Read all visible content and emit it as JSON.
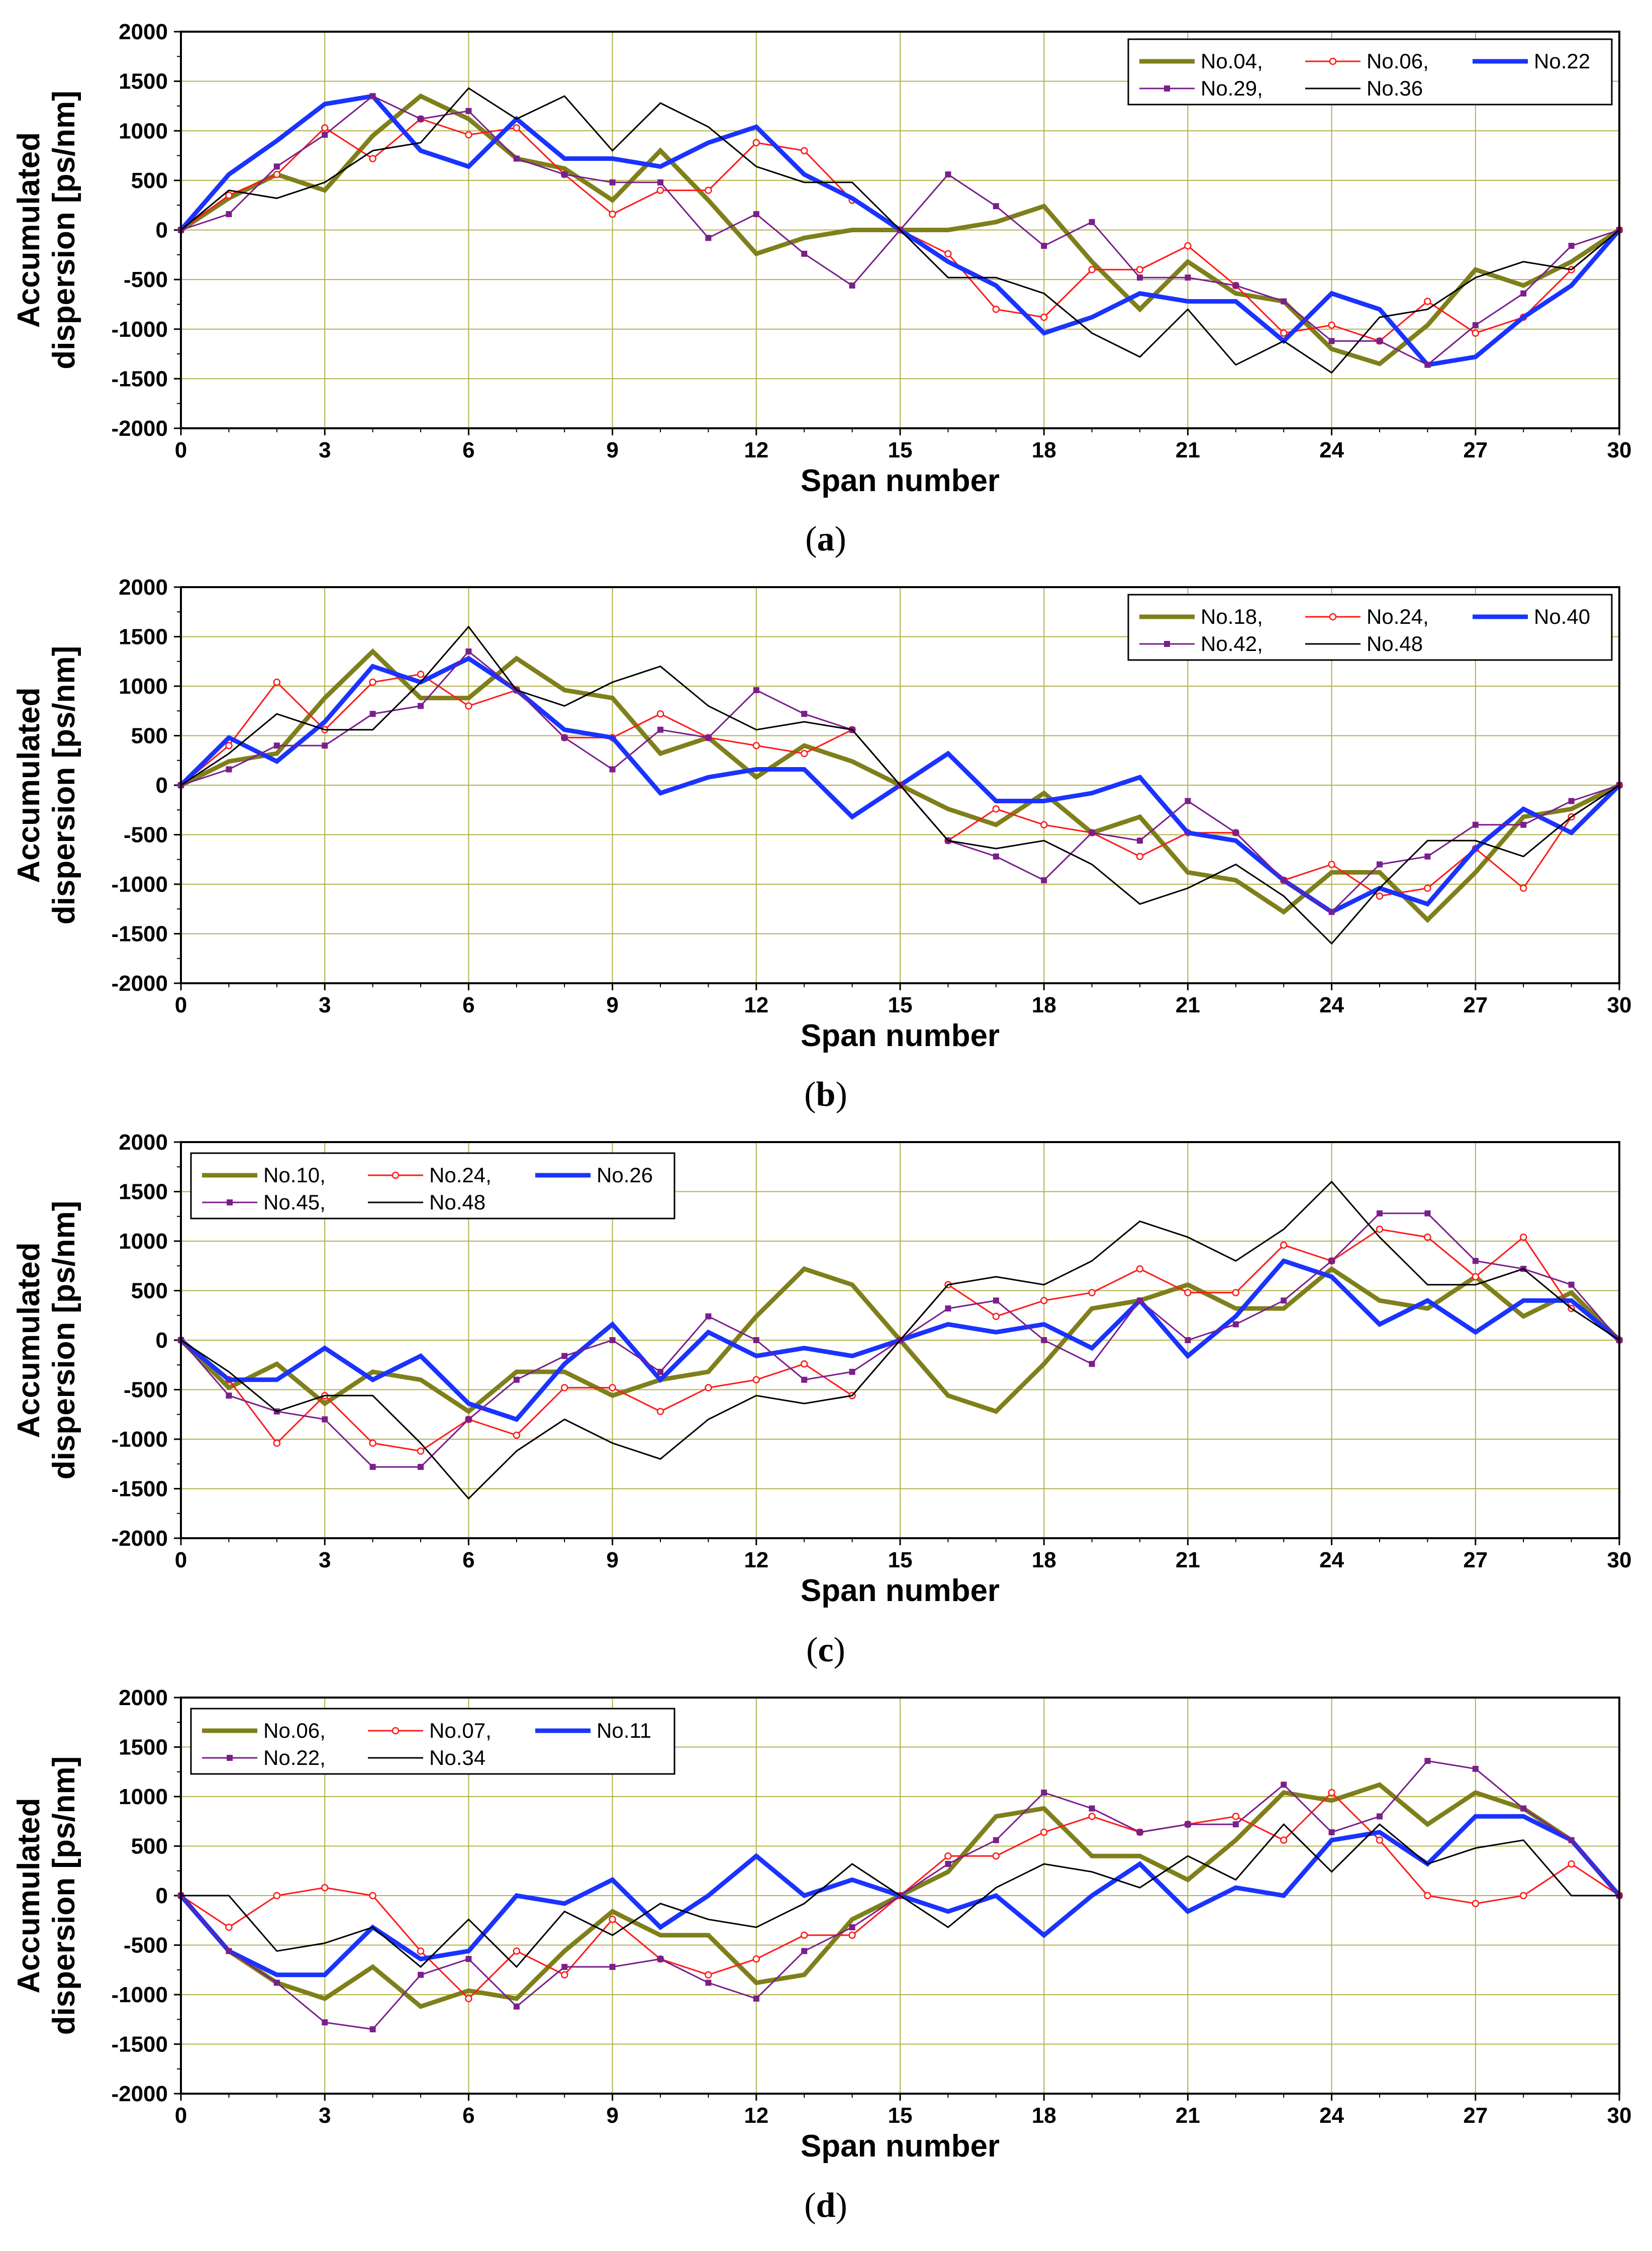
{
  "chart_data": [
    {
      "type": "line",
      "caption": "a",
      "xlabel": "Span number",
      "ylabel": [
        "Accumulated",
        "dispersion [ps/nm]"
      ],
      "xlim": [
        0,
        30
      ],
      "ylim": [
        -2000,
        2000
      ],
      "xticks": [
        0,
        3,
        6,
        9,
        12,
        15,
        18,
        21,
        24,
        27,
        30
      ],
      "yticks": [
        -2000,
        -1500,
        -1000,
        -500,
        0,
        500,
        1000,
        1500,
        2000
      ],
      "grid": true,
      "legend_position": "top-right",
      "x": [
        0,
        1,
        2,
        3,
        4,
        5,
        6,
        7,
        8,
        9,
        10,
        11,
        12,
        13,
        14,
        15,
        16,
        17,
        18,
        19,
        20,
        21,
        22,
        23,
        24,
        25,
        26,
        27,
        28,
        29,
        30
      ],
      "series": [
        {
          "name": "No.04,",
          "color": "#7f7f1b",
          "style": "thick",
          "values": [
            0,
            320,
            560,
            400,
            950,
            1350,
            1120,
            720,
            620,
            300,
            800,
            300,
            -240,
            -80,
            0,
            0,
            0,
            80,
            240,
            -320,
            -800,
            -320,
            -640,
            -720,
            -1200,
            -1350,
            -960,
            -400,
            -560,
            -320,
            0
          ]
        },
        {
          "name": "No.06,",
          "color": "#ff1a1a",
          "style": "circle",
          "values": [
            0,
            350,
            560,
            1030,
            720,
            1120,
            960,
            1030,
            560,
            160,
            400,
            400,
            880,
            800,
            300,
            0,
            -240,
            -800,
            -880,
            -400,
            -400,
            -160,
            -560,
            -1040,
            -960,
            -1120,
            -720,
            -1040,
            -880,
            -400,
            0
          ]
        },
        {
          "name": "No.22",
          "color": "#1a33ff",
          "style": "thick",
          "values": [
            0,
            560,
            900,
            1270,
            1350,
            800,
            640,
            1120,
            720,
            720,
            640,
            880,
            1040,
            560,
            320,
            0,
            -320,
            -560,
            -1040,
            -880,
            -640,
            -720,
            -720,
            -1120,
            -640,
            -800,
            -1360,
            -1280,
            -880,
            -560,
            0
          ]
        },
        {
          "name": "No.29,",
          "color": "#7a1f8c",
          "style": "square",
          "values": [
            0,
            160,
            640,
            960,
            1350,
            1120,
            1200,
            720,
            560,
            480,
            480,
            -80,
            160,
            -240,
            -560,
            0,
            560,
            240,
            -160,
            80,
            -480,
            -480,
            -560,
            -720,
            -1120,
            -1120,
            -1360,
            -960,
            -640,
            -160,
            0
          ]
        },
        {
          "name": "No.36",
          "color": "#000000",
          "style": "thin",
          "values": [
            0,
            400,
            320,
            480,
            800,
            880,
            1430,
            1120,
            1350,
            800,
            1280,
            1040,
            640,
            480,
            480,
            0,
            -480,
            -480,
            -640,
            -1040,
            -1280,
            -800,
            -1360,
            -1120,
            -1440,
            -880,
            -800,
            -480,
            -320,
            -400,
            0
          ]
        }
      ]
    },
    {
      "type": "line",
      "caption": "b",
      "xlabel": "Span number",
      "ylabel": [
        "Accumulated",
        "dispersion [ps/nm]"
      ],
      "xlim": [
        0,
        30
      ],
      "ylim": [
        -2000,
        2000
      ],
      "xticks": [
        0,
        3,
        6,
        9,
        12,
        15,
        18,
        21,
        24,
        27,
        30
      ],
      "yticks": [
        -2000,
        -1500,
        -1000,
        -500,
        0,
        500,
        1000,
        1500,
        2000
      ],
      "grid": true,
      "legend_position": "top-right",
      "x": [
        0,
        1,
        2,
        3,
        4,
        5,
        6,
        7,
        8,
        9,
        10,
        11,
        12,
        13,
        14,
        15,
        16,
        17,
        18,
        19,
        20,
        21,
        22,
        23,
        24,
        25,
        26,
        27,
        28,
        29,
        30
      ],
      "series": [
        {
          "name": "No.18,",
          "color": "#7f7f1b",
          "style": "thick",
          "values": [
            0,
            240,
            320,
            880,
            1350,
            880,
            880,
            1280,
            960,
            880,
            320,
            480,
            80,
            400,
            240,
            0,
            -240,
            -400,
            -80,
            -480,
            -320,
            -880,
            -960,
            -1280,
            -880,
            -880,
            -1360,
            -880,
            -320,
            -240,
            0
          ]
        },
        {
          "name": "No.24,",
          "color": "#ff1a1a",
          "style": "circle",
          "values": [
            0,
            400,
            1040,
            560,
            1040,
            1120,
            800,
            960,
            480,
            480,
            720,
            480,
            400,
            320,
            560,
            0,
            -560,
            -240,
            -400,
            -480,
            -720,
            -480,
            -480,
            -960,
            -800,
            -1120,
            -1040,
            -640,
            -1040,
            -320,
            0
          ]
        },
        {
          "name": "No.40",
          "color": "#1a33ff",
          "style": "thick",
          "values": [
            0,
            480,
            240,
            640,
            1200,
            1040,
            1280,
            960,
            560,
            480,
            -80,
            80,
            160,
            160,
            -320,
            0,
            320,
            -160,
            -160,
            -80,
            80,
            -480,
            -560,
            -960,
            -1280,
            -1040,
            -1200,
            -640,
            -240,
            -480,
            0
          ]
        },
        {
          "name": "No.42,",
          "color": "#7a1f8c",
          "style": "square",
          "values": [
            0,
            160,
            400,
            400,
            720,
            800,
            1350,
            960,
            480,
            160,
            560,
            480,
            960,
            720,
            560,
            0,
            -560,
            -720,
            -960,
            -480,
            -560,
            -160,
            -480,
            -960,
            -1280,
            -800,
            -720,
            -400,
            -400,
            -160,
            0
          ]
        },
        {
          "name": "No.48",
          "color": "#000000",
          "style": "thin",
          "values": [
            0,
            320,
            720,
            560,
            560,
            1040,
            1600,
            960,
            800,
            1040,
            1200,
            800,
            560,
            640,
            560,
            0,
            -560,
            -640,
            -560,
            -800,
            -1200,
            -1040,
            -800,
            -1120,
            -1600,
            -1040,
            -560,
            -560,
            -720,
            -320,
            0
          ]
        }
      ]
    },
    {
      "type": "line",
      "caption": "c",
      "xlabel": "Span number",
      "ylabel": [
        "Accumulated",
        "dispersion [ps/nm]"
      ],
      "xlim": [
        0,
        30
      ],
      "ylim": [
        -2000,
        2000
      ],
      "xticks": [
        0,
        3,
        6,
        9,
        12,
        15,
        18,
        21,
        24,
        27,
        30
      ],
      "yticks": [
        -2000,
        -1500,
        -1000,
        -500,
        0,
        500,
        1000,
        1500,
        2000
      ],
      "grid": true,
      "legend_position": "top-left",
      "x": [
        0,
        1,
        2,
        3,
        4,
        5,
        6,
        7,
        8,
        9,
        10,
        11,
        12,
        13,
        14,
        15,
        16,
        17,
        18,
        19,
        20,
        21,
        22,
        23,
        24,
        25,
        26,
        27,
        28,
        29,
        30
      ],
      "series": [
        {
          "name": "No.10,",
          "color": "#7f7f1b",
          "style": "thick",
          "values": [
            0,
            -480,
            -240,
            -640,
            -320,
            -400,
            -720,
            -320,
            -320,
            -560,
            -400,
            -320,
            240,
            720,
            560,
            0,
            -560,
            -720,
            -240,
            320,
            400,
            560,
            320,
            320,
            720,
            400,
            320,
            640,
            240,
            480,
            0
          ]
        },
        {
          "name": "No.24,",
          "color": "#ff1a1a",
          "style": "circle",
          "values": [
            0,
            -400,
            -1040,
            -560,
            -1040,
            -1120,
            -800,
            -960,
            -480,
            -480,
            -720,
            -480,
            -400,
            -240,
            -560,
            0,
            560,
            240,
            400,
            480,
            720,
            480,
            480,
            960,
            800,
            1120,
            1040,
            640,
            1040,
            320,
            0
          ]
        },
        {
          "name": "No.26",
          "color": "#1a33ff",
          "style": "thick",
          "values": [
            0,
            -400,
            -400,
            -80,
            -400,
            -160,
            -640,
            -800,
            -240,
            160,
            -400,
            80,
            -160,
            -80,
            -160,
            0,
            160,
            80,
            160,
            -80,
            400,
            -160,
            240,
            800,
            640,
            160,
            400,
            80,
            400,
            400,
            0
          ]
        },
        {
          "name": "No.45,",
          "color": "#7a1f8c",
          "style": "square",
          "values": [
            0,
            -560,
            -720,
            -800,
            -1280,
            -1280,
            -800,
            -400,
            -160,
            0,
            -320,
            240,
            0,
            -400,
            -320,
            0,
            320,
            400,
            0,
            -240,
            400,
            0,
            160,
            400,
            800,
            1280,
            1280,
            800,
            720,
            560,
            0
          ]
        },
        {
          "name": "No.48",
          "color": "#000000",
          "style": "thin",
          "values": [
            0,
            -320,
            -720,
            -560,
            -560,
            -1040,
            -1600,
            -1120,
            -800,
            -1040,
            -1200,
            -800,
            -560,
            -640,
            -560,
            0,
            560,
            640,
            560,
            800,
            1200,
            1040,
            800,
            1120,
            1600,
            1040,
            560,
            560,
            720,
            320,
            0
          ]
        }
      ]
    },
    {
      "type": "line",
      "caption": "d",
      "xlabel": "Span number",
      "ylabel": [
        "Accumulated",
        "dispersion [ps/nm]"
      ],
      "xlim": [
        0,
        30
      ],
      "ylim": [
        -2000,
        2000
      ],
      "xticks": [
        0,
        3,
        6,
        9,
        12,
        15,
        18,
        21,
        24,
        27,
        30
      ],
      "yticks": [
        -2000,
        -1500,
        -1000,
        -500,
        0,
        500,
        1000,
        1500,
        2000
      ],
      "grid": true,
      "legend_position": "top-left",
      "x": [
        0,
        1,
        2,
        3,
        4,
        5,
        6,
        7,
        8,
        9,
        10,
        11,
        12,
        13,
        14,
        15,
        16,
        17,
        18,
        19,
        20,
        21,
        22,
        23,
        24,
        25,
        26,
        27,
        28,
        29,
        30
      ],
      "series": [
        {
          "name": "No.06,",
          "color": "#7f7f1b",
          "style": "thick",
          "values": [
            0,
            -560,
            -880,
            -1040,
            -720,
            -1120,
            -960,
            -1040,
            -560,
            -160,
            -400,
            -400,
            -880,
            -800,
            -240,
            0,
            240,
            800,
            880,
            400,
            400,
            160,
            560,
            1040,
            960,
            1120,
            720,
            1040,
            880,
            560,
            0
          ]
        },
        {
          "name": "No.07,",
          "color": "#ff1a1a",
          "style": "circle",
          "values": [
            0,
            -320,
            0,
            80,
            0,
            -560,
            -1040,
            -560,
            -800,
            -240,
            -640,
            -800,
            -640,
            -400,
            -400,
            0,
            400,
            400,
            640,
            800,
            640,
            720,
            800,
            560,
            1040,
            560,
            0,
            -80,
            0,
            320,
            0
          ]
        },
        {
          "name": "No.11",
          "color": "#1a33ff",
          "style": "thick",
          "values": [
            0,
            -560,
            -800,
            -800,
            -320,
            -640,
            -560,
            0,
            -80,
            160,
            -320,
            0,
            400,
            0,
            160,
            0,
            -160,
            0,
            -400,
            0,
            320,
            -160,
            80,
            0,
            560,
            640,
            320,
            800,
            800,
            560,
            0
          ]
        },
        {
          "name": "No.22,",
          "color": "#7a1f8c",
          "style": "square",
          "values": [
            0,
            -560,
            -880,
            -1280,
            -1350,
            -800,
            -640,
            -1120,
            -720,
            -720,
            -640,
            -880,
            -1040,
            -560,
            -320,
            0,
            320,
            560,
            1040,
            880,
            640,
            720,
            720,
            1120,
            640,
            800,
            1360,
            1280,
            880,
            560,
            0
          ]
        },
        {
          "name": "No.34",
          "color": "#000000",
          "style": "thin",
          "values": [
            0,
            0,
            -560,
            -480,
            -320,
            -720,
            -240,
            -720,
            -160,
            -400,
            -80,
            -240,
            -320,
            -80,
            320,
            0,
            -320,
            80,
            320,
            240,
            80,
            400,
            160,
            720,
            240,
            720,
            320,
            480,
            560,
            0,
            0
          ]
        }
      ]
    }
  ]
}
